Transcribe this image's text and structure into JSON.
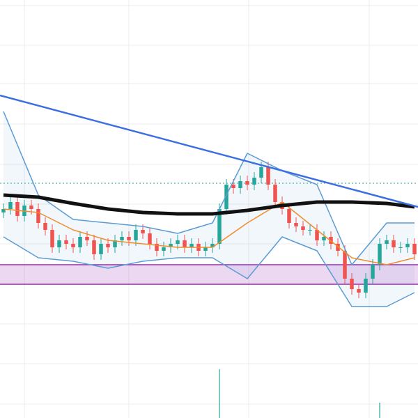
{
  "chart_data": {
    "type": "candlestick",
    "x": [
      0,
      1,
      2,
      3,
      4,
      5,
      6,
      7,
      8,
      9,
      10,
      11,
      12,
      13,
      14,
      15,
      16,
      17,
      18,
      19,
      20,
      21,
      22,
      23,
      24,
      25,
      26,
      27,
      28,
      29,
      30,
      31,
      32,
      33,
      34,
      35,
      36,
      37,
      38,
      39,
      40,
      41,
      42,
      43,
      44,
      45,
      46,
      47,
      48,
      49,
      50,
      51,
      52,
      53,
      54,
      55,
      56,
      57,
      58,
      59
    ],
    "open": [
      295,
      300,
      310,
      290,
      305,
      300,
      280,
      270,
      245,
      255,
      250,
      245,
      260,
      255,
      235,
      250,
      245,
      255,
      260,
      255,
      270,
      265,
      250,
      240,
      245,
      250,
      255,
      245,
      250,
      240,
      245,
      250,
      300,
      335,
      330,
      340,
      335,
      345,
      360,
      335,
      310,
      300,
      280,
      275,
      270,
      270,
      255,
      260,
      250,
      240,
      200,
      185,
      180,
      200,
      220,
      250,
      255,
      245,
      245,
      250
    ],
    "high": [
      308,
      318,
      318,
      313,
      313,
      308,
      288,
      278,
      263,
      263,
      258,
      268,
      268,
      263,
      258,
      258,
      263,
      268,
      268,
      278,
      278,
      273,
      258,
      253,
      258,
      263,
      263,
      258,
      258,
      253,
      258,
      308,
      343,
      343,
      348,
      348,
      353,
      368,
      368,
      343,
      318,
      308,
      288,
      283,
      278,
      278,
      268,
      268,
      258,
      248,
      208,
      193,
      208,
      228,
      258,
      263,
      263,
      253,
      258,
      258
    ],
    "low": [
      287,
      292,
      282,
      282,
      292,
      272,
      262,
      237,
      237,
      242,
      237,
      237,
      247,
      227,
      227,
      237,
      237,
      247,
      247,
      247,
      257,
      242,
      232,
      232,
      237,
      242,
      237,
      237,
      232,
      232,
      237,
      242,
      292,
      322,
      322,
      327,
      327,
      337,
      327,
      302,
      292,
      272,
      267,
      262,
      262,
      247,
      247,
      242,
      232,
      192,
      177,
      172,
      172,
      192,
      212,
      242,
      237,
      237,
      237,
      227
    ],
    "close": [
      300,
      310,
      290,
      305,
      300,
      280,
      270,
      245,
      255,
      250,
      245,
      260,
      255,
      235,
      250,
      245,
      255,
      260,
      255,
      270,
      265,
      250,
      240,
      245,
      250,
      255,
      245,
      250,
      240,
      245,
      250,
      300,
      335,
      330,
      340,
      335,
      345,
      360,
      335,
      310,
      300,
      280,
      275,
      270,
      270,
      255,
      260,
      250,
      240,
      200,
      185,
      180,
      200,
      220,
      250,
      255,
      245,
      245,
      250,
      235
    ],
    "up_color": "#26a69a",
    "down_color": "#ef5350",
    "xlim": [
      -0.5,
      59.5
    ],
    "ylim": [
      0,
      600
    ],
    "xticks": [
      3,
      18,
      35.2,
      52.5
    ],
    "yticks": [
      592,
      535,
      480,
      422,
      364,
      307,
      250,
      192,
      135,
      78,
      20
    ],
    "grid": true,
    "overlays": [
      {
        "x": [
          0,
          5,
          10,
          15,
          20,
          25,
          30,
          35,
          40,
          45,
          50,
          55,
          59
        ],
        "values": [
          440,
          320,
          285,
          280,
          275,
          265,
          280,
          380,
          355,
          335,
          220,
          280,
          280
        ],
        "color": "#5b9bd5",
        "width": 1.5
      },
      {
        "x": [
          0,
          5,
          10,
          15,
          20,
          25,
          30,
          35,
          40,
          45,
          50,
          55,
          59
        ],
        "values": [
          260,
          230,
          225,
          215,
          225,
          230,
          230,
          200,
          260,
          240,
          160,
          160,
          180
        ],
        "color": "#5b9bd5",
        "width": 1.5
      },
      {
        "x": [
          0,
          5,
          10,
          15,
          20,
          25,
          30,
          35,
          40,
          45,
          50,
          55,
          59
        ],
        "values": [
          300,
          295,
          270,
          255,
          250,
          245,
          245,
          280,
          310,
          270,
          230,
          220,
          230
        ],
        "color": "#f08c2a",
        "width": 1.5
      },
      {
        "x": [
          0,
          5,
          10,
          15,
          20,
          25,
          30,
          35,
          40,
          45,
          50,
          55,
          59
        ],
        "values": [
          320,
          317,
          308,
          300,
          295,
          293,
          293,
          298,
          305,
          310,
          310,
          308,
          303
        ],
        "color": "#111111",
        "width": 5
      },
      {
        "x": [
          -0.5,
          59.5
        ],
        "values": [
          463,
          303
        ],
        "color": "#3b6fe0",
        "width": 2.5
      }
    ],
    "level": {
      "value": 337,
      "color": "#26a69a"
    },
    "zone": {
      "values": [
        192,
        220
      ],
      "color": "#9c27b0"
    },
    "volume": {
      "x": [
        31,
        54
      ],
      "values": [
        70,
        22
      ],
      "color": "#26a69a",
      "y2lim": [
        0,
        600
      ]
    }
  }
}
